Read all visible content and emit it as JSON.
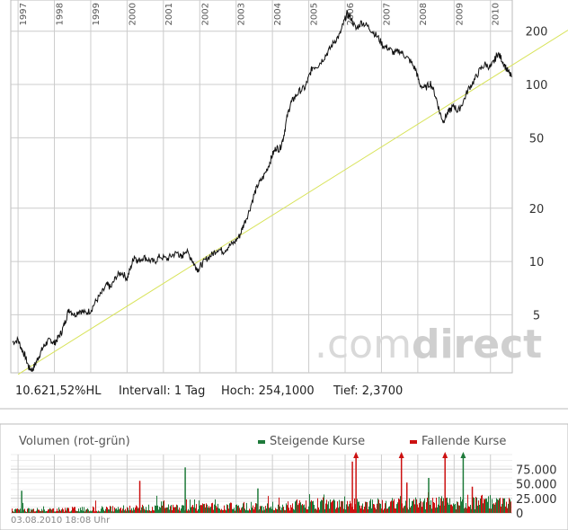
{
  "chart_data": {
    "type": "line",
    "scale": "log",
    "x_years": [
      "1997",
      "1998",
      "1999",
      "2000",
      "2001",
      "2002",
      "2003",
      "2004",
      "2005",
      "2006",
      "2007",
      "2008",
      "2009",
      "2010"
    ],
    "y_ticks": [
      {
        "value": 5,
        "label": "5"
      },
      {
        "value": 10,
        "label": "10"
      },
      {
        "value": 20,
        "label": "20"
      },
      {
        "value": 50,
        "label": "50"
      },
      {
        "value": 100,
        "label": "100"
      },
      {
        "value": 200,
        "label": "200"
      }
    ],
    "y_range": [
      2.35,
      300
    ],
    "x_range": [
      1996.8,
      2010.6
    ],
    "price_points": [
      {
        "x": 1996.85,
        "y": 3.5
      },
      {
        "x": 1997.0,
        "y": 3.6
      },
      {
        "x": 1997.1,
        "y": 3.2
      },
      {
        "x": 1997.2,
        "y": 2.9
      },
      {
        "x": 1997.3,
        "y": 2.5
      },
      {
        "x": 1997.4,
        "y": 2.45
      },
      {
        "x": 1997.5,
        "y": 2.7
      },
      {
        "x": 1997.6,
        "y": 3.0
      },
      {
        "x": 1997.7,
        "y": 3.3
      },
      {
        "x": 1997.8,
        "y": 3.5
      },
      {
        "x": 1997.9,
        "y": 3.6
      },
      {
        "x": 1998.0,
        "y": 3.45
      },
      {
        "x": 1998.1,
        "y": 3.7
      },
      {
        "x": 1998.2,
        "y": 4.0
      },
      {
        "x": 1998.3,
        "y": 4.6
      },
      {
        "x": 1998.4,
        "y": 5.4
      },
      {
        "x": 1998.55,
        "y": 5.0
      },
      {
        "x": 1998.7,
        "y": 5.3
      },
      {
        "x": 1998.85,
        "y": 5.1
      },
      {
        "x": 1999.0,
        "y": 5.3
      },
      {
        "x": 1999.15,
        "y": 6.0
      },
      {
        "x": 1999.3,
        "y": 6.6
      },
      {
        "x": 1999.45,
        "y": 7.4
      },
      {
        "x": 1999.55,
        "y": 7.1
      },
      {
        "x": 1999.7,
        "y": 8.2
      },
      {
        "x": 1999.85,
        "y": 8.7
      },
      {
        "x": 2000.0,
        "y": 8.0
      },
      {
        "x": 2000.1,
        "y": 9.2
      },
      {
        "x": 2000.2,
        "y": 10.8
      },
      {
        "x": 2000.3,
        "y": 10.0
      },
      {
        "x": 2000.45,
        "y": 10.6
      },
      {
        "x": 2000.6,
        "y": 10.2
      },
      {
        "x": 2000.75,
        "y": 9.9
      },
      {
        "x": 2000.9,
        "y": 10.7
      },
      {
        "x": 2001.1,
        "y": 10.3
      },
      {
        "x": 2001.25,
        "y": 10.9
      },
      {
        "x": 2001.4,
        "y": 11.2
      },
      {
        "x": 2001.5,
        "y": 10.4
      },
      {
        "x": 2001.6,
        "y": 11.6
      },
      {
        "x": 2001.75,
        "y": 10.6
      },
      {
        "x": 2001.85,
        "y": 9.6
      },
      {
        "x": 2001.95,
        "y": 9.0
      },
      {
        "x": 2002.05,
        "y": 9.6
      },
      {
        "x": 2002.2,
        "y": 10.4
      },
      {
        "x": 2002.35,
        "y": 11.0
      },
      {
        "x": 2002.5,
        "y": 11.8
      },
      {
        "x": 2002.65,
        "y": 11.4
      },
      {
        "x": 2002.8,
        "y": 12.2
      },
      {
        "x": 2002.95,
        "y": 12.8
      },
      {
        "x": 2003.1,
        "y": 14.0
      },
      {
        "x": 2003.2,
        "y": 16.0
      },
      {
        "x": 2003.35,
        "y": 19.0
      },
      {
        "x": 2003.5,
        "y": 24.0
      },
      {
        "x": 2003.6,
        "y": 27.0
      },
      {
        "x": 2003.75,
        "y": 30.0
      },
      {
        "x": 2003.9,
        "y": 35.0
      },
      {
        "x": 2004.0,
        "y": 40.0
      },
      {
        "x": 2004.1,
        "y": 44.0
      },
      {
        "x": 2004.2,
        "y": 43.0
      },
      {
        "x": 2004.3,
        "y": 50.0
      },
      {
        "x": 2004.4,
        "y": 65.0
      },
      {
        "x": 2004.5,
        "y": 78.0
      },
      {
        "x": 2004.6,
        "y": 84.0
      },
      {
        "x": 2004.75,
        "y": 92.0
      },
      {
        "x": 2004.9,
        "y": 96.0
      },
      {
        "x": 2005.0,
        "y": 110.0
      },
      {
        "x": 2005.1,
        "y": 125.0
      },
      {
        "x": 2005.25,
        "y": 128.0
      },
      {
        "x": 2005.4,
        "y": 140.0
      },
      {
        "x": 2005.55,
        "y": 155.0
      },
      {
        "x": 2005.7,
        "y": 175.0
      },
      {
        "x": 2005.85,
        "y": 190.0
      },
      {
        "x": 2005.95,
        "y": 220.0
      },
      {
        "x": 2006.05,
        "y": 250.0
      },
      {
        "x": 2006.15,
        "y": 240.0
      },
      {
        "x": 2006.3,
        "y": 205.0
      },
      {
        "x": 2006.45,
        "y": 225.0
      },
      {
        "x": 2006.6,
        "y": 215.0
      },
      {
        "x": 2006.75,
        "y": 200.0
      },
      {
        "x": 2006.9,
        "y": 185.0
      },
      {
        "x": 2007.05,
        "y": 165.0
      },
      {
        "x": 2007.2,
        "y": 160.0
      },
      {
        "x": 2007.35,
        "y": 150.0
      },
      {
        "x": 2007.5,
        "y": 155.0
      },
      {
        "x": 2007.65,
        "y": 145.0
      },
      {
        "x": 2007.8,
        "y": 135.0
      },
      {
        "x": 2007.95,
        "y": 120.0
      },
      {
        "x": 2008.05,
        "y": 100.0
      },
      {
        "x": 2008.2,
        "y": 95.0
      },
      {
        "x": 2008.35,
        "y": 102.0
      },
      {
        "x": 2008.5,
        "y": 85.0
      },
      {
        "x": 2008.6,
        "y": 70.0
      },
      {
        "x": 2008.7,
        "y": 62.0
      },
      {
        "x": 2008.8,
        "y": 68.0
      },
      {
        "x": 2008.9,
        "y": 72.0
      },
      {
        "x": 2009.0,
        "y": 76.0
      },
      {
        "x": 2009.1,
        "y": 70.0
      },
      {
        "x": 2009.25,
        "y": 80.0
      },
      {
        "x": 2009.4,
        "y": 95.0
      },
      {
        "x": 2009.55,
        "y": 105.0
      },
      {
        "x": 2009.7,
        "y": 120.0
      },
      {
        "x": 2009.85,
        "y": 130.0
      },
      {
        "x": 2010.0,
        "y": 125.0
      },
      {
        "x": 2010.1,
        "y": 135.0
      },
      {
        "x": 2010.2,
        "y": 150.0
      },
      {
        "x": 2010.3,
        "y": 140.0
      },
      {
        "x": 2010.42,
        "y": 125.0
      },
      {
        "x": 2010.52,
        "y": 115.0
      },
      {
        "x": 2010.58,
        "y": 110.0
      }
    ],
    "trendline": {
      "start": {
        "x": 1997.0,
        "y": 2.3
      },
      "end": {
        "x": 2010.6,
        "y": 130.0
      },
      "color": "#d8e35a"
    },
    "info_bar": {
      "performance": "10.621,52%HL",
      "interval": "Intervall: 1 Tag",
      "high": "Hoch: 254,1000",
      "low": "Tief: 2,3700"
    },
    "watermark": {
      "light": ".com",
      "bold": "direct"
    },
    "volume": {
      "title": "Volumen (rot-grün)",
      "legend": [
        {
          "label": "Steigende Kurse",
          "color": "#1e7a3a"
        },
        {
          "label": "Fallende Kurse",
          "color": "#cc1111"
        }
      ],
      "y_ticks": [
        {
          "value": 0,
          "label": "0"
        },
        {
          "value": 25000,
          "label": "25.000"
        },
        {
          "value": 50000,
          "label": "50.000"
        },
        {
          "value": 75000,
          "label": "75.000"
        }
      ],
      "y_max": 100000,
      "spikes": [
        {
          "x": 1997.1,
          "v": 38000,
          "up": true
        },
        {
          "x": 2000.35,
          "v": 55000,
          "up": false
        },
        {
          "x": 2001.6,
          "v": 78000,
          "up": true
        },
        {
          "x": 2003.6,
          "v": 42000,
          "up": true
        },
        {
          "x": 2006.2,
          "v": 88000,
          "up": false
        },
        {
          "x": 2006.3,
          "v": 110000,
          "up": false,
          "overflow": true
        },
        {
          "x": 2007.55,
          "v": 115000,
          "up": false,
          "overflow": true
        },
        {
          "x": 2007.7,
          "v": 52000,
          "up": false
        },
        {
          "x": 2008.3,
          "v": 60000,
          "up": true
        },
        {
          "x": 2008.75,
          "v": 120000,
          "up": false,
          "overflow": true
        },
        {
          "x": 2009.25,
          "v": 118000,
          "up": true,
          "overflow": true
        },
        {
          "x": 2009.5,
          "v": 45000,
          "up": false
        }
      ]
    },
    "date_stamp": "03.08.2010 18:08 Uhr",
    "colors": {
      "price_line": "#111111",
      "grid": "#cccccc",
      "trendline": "#d8e35a"
    }
  }
}
